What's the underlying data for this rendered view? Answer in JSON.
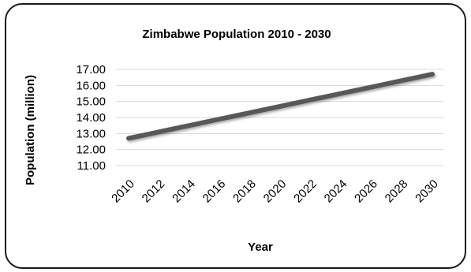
{
  "chart_data": {
    "type": "line",
    "title": "Zimbabwe Population 2010 - 2030",
    "xlabel": "Year",
    "ylabel": "Population (million)",
    "x_tick_labels": [
      "2010",
      "2012",
      "2014",
      "2016",
      "2018",
      "2020",
      "2022",
      "2024",
      "2026",
      "2028",
      "2030"
    ],
    "y_tick_labels": [
      "11.00",
      "12.00",
      "13.00",
      "14.00",
      "15.00",
      "16.00",
      "17.00"
    ],
    "ylim": [
      11,
      17
    ],
    "xlim": [
      2010,
      2030
    ],
    "grid": true,
    "legend": "none",
    "series": [
      {
        "x": [
          2010,
          2011,
          2012,
          2013,
          2014,
          2015,
          2016,
          2017,
          2018,
          2019,
          2020,
          2021,
          2022,
          2023,
          2024,
          2025,
          2026,
          2027,
          2028,
          2029,
          2030
        ],
        "y": [
          12.7,
          12.9,
          13.1,
          13.3,
          13.5,
          13.7,
          13.9,
          14.1,
          14.3,
          14.5,
          14.7,
          14.9,
          15.1,
          15.3,
          15.5,
          15.7,
          15.9,
          16.1,
          16.3,
          16.5,
          16.7
        ],
        "color": "#595959"
      }
    ]
  }
}
